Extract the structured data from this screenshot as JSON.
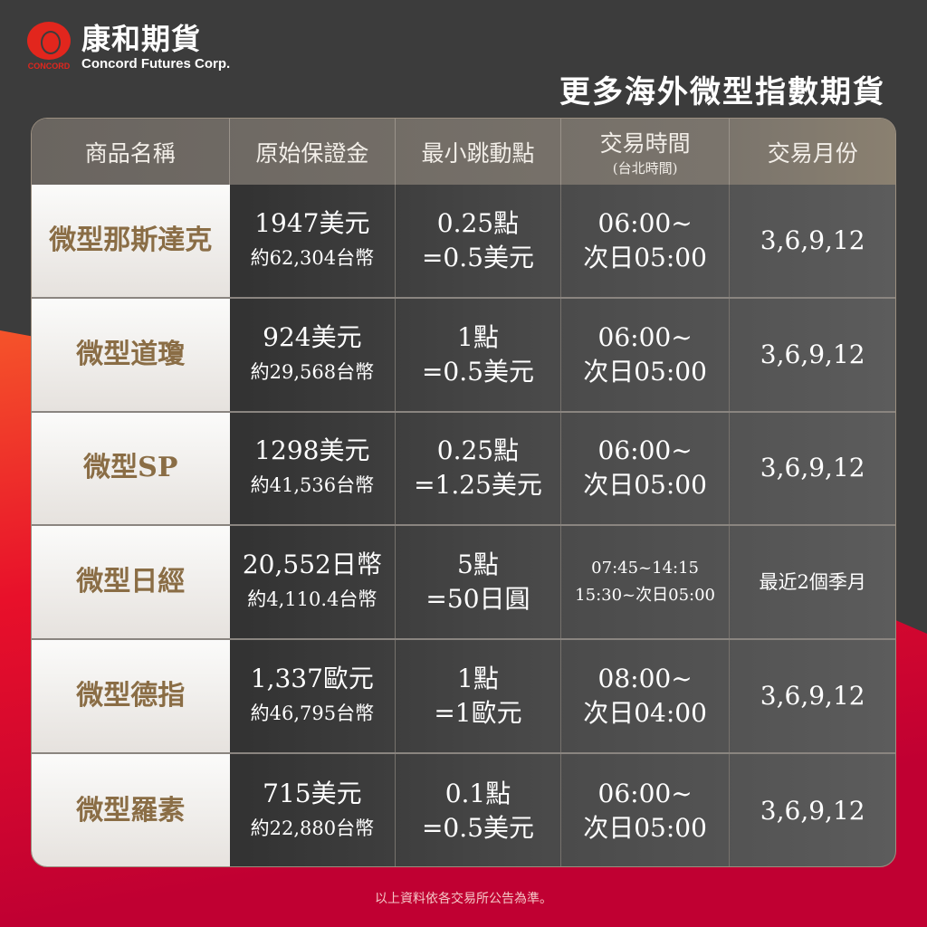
{
  "logo": {
    "cn": "康和期貨",
    "en": "Concord Futures Corp.",
    "mark": "CONCORD"
  },
  "title": "更多海外微型指數期貨",
  "headers": [
    "商品名稱",
    "原始保證金",
    "最小跳動點",
    "交易時間",
    "交易月份"
  ],
  "header_sub": "(台北時間)",
  "rows": [
    {
      "name": "微型那斯達克",
      "margin": "1947美元",
      "margin_twd": "約62,304台幣",
      "tick": "0.25點",
      "tick_val": "=0.5美元",
      "time1": "06:00~",
      "time2": "次日05:00",
      "months": "3,6,9,12"
    },
    {
      "name": "微型道瓊",
      "margin": "924美元",
      "margin_twd": "約29,568台幣",
      "tick": "1點",
      "tick_val": "=0.5美元",
      "time1": "06:00~",
      "time2": "次日05:00",
      "months": "3,6,9,12"
    },
    {
      "name": "微型SP",
      "margin": "1298美元",
      "margin_twd": "約41,536台幣",
      "tick": "0.25點",
      "tick_val": "=1.25美元",
      "time1": "06:00~",
      "time2": "次日05:00",
      "months": "3,6,9,12"
    },
    {
      "name": "微型日經",
      "margin": "20,552日幣",
      "margin_twd": "約4,110.4台幣",
      "tick": "5點",
      "tick_val": "=50日圓",
      "time1": "07:45~14:15",
      "time2": "15:30~次日05:00",
      "months": "最近2個季月"
    },
    {
      "name": "微型德指",
      "margin": "1,337歐元",
      "margin_twd": "約46,795台幣",
      "tick": "1點",
      "tick_val": "=1歐元",
      "time1": "08:00~",
      "time2": "次日04:00",
      "months": "3,6,9,12"
    },
    {
      "name": "微型羅素",
      "margin": "715美元",
      "margin_twd": "約22,880台幣",
      "tick": "0.1點",
      "tick_val": "=0.5美元",
      "time1": "06:00~",
      "time2": "次日05:00",
      "months": "3,6,9,12"
    }
  ],
  "footer": "以上資料依各交易所公告為準。"
}
